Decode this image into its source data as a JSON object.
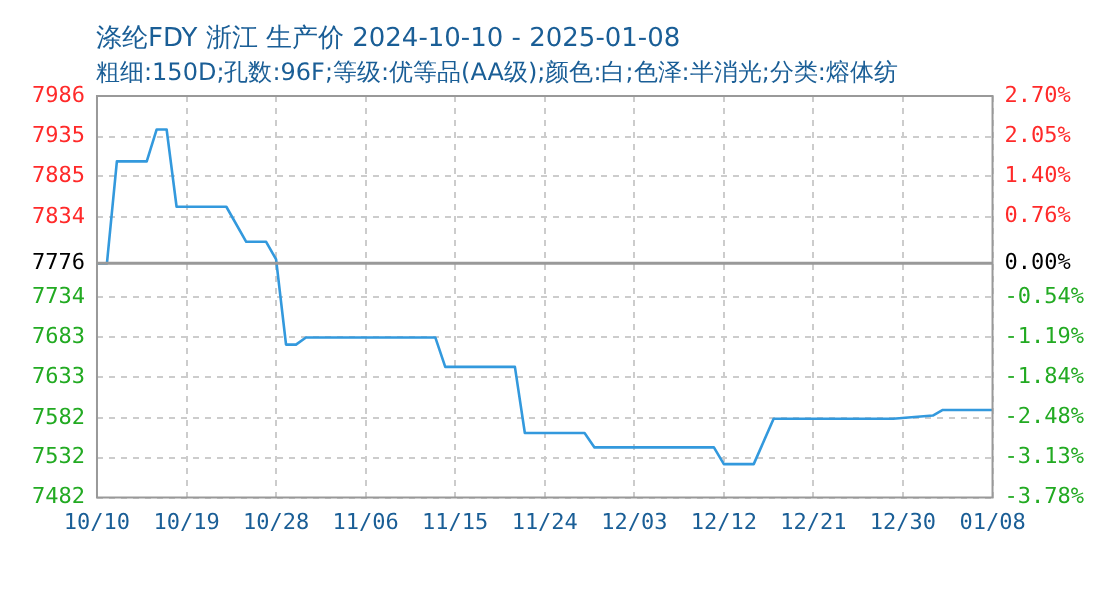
{
  "chart_data": {
    "type": "line",
    "title": "涤纶FDY 浙江 生产价 2024-10-10 - 2025-01-08",
    "subtitle": "粗细:150D;孔数:96F;等级:优等品(AA级);颜色:白;色泽:半消光;分类:熔体纺",
    "x": [
      "2024-10-10",
      "2024-10-11",
      "2024-10-12",
      "2024-10-15",
      "2024-10-16",
      "2024-10-17",
      "2024-10-18",
      "2024-10-23",
      "2024-10-25",
      "2024-10-27",
      "2024-10-28",
      "2024-10-29",
      "2024-10-30",
      "2024-10-31",
      "2024-11-13",
      "2024-11-14",
      "2024-11-21",
      "2024-11-22",
      "2024-11-28",
      "2024-11-29",
      "2024-12-11",
      "2024-12-12",
      "2024-12-15",
      "2024-12-17",
      "2024-12-29",
      "2025-01-02",
      "2025-01-03",
      "2025-01-08"
    ],
    "series": [
      {
        "color": "#3399dd",
        "values": [
          7776,
          7776,
          7904,
          7904,
          7944,
          7944,
          7847,
          7847,
          7803,
          7803,
          7781,
          7674,
          7674,
          7683,
          7683,
          7646,
          7646,
          7563,
          7563,
          7545,
          7545,
          7524,
          7524,
          7581,
          7581,
          7585,
          7592,
          7592
        ]
      }
    ],
    "xlim": [
      "2024-10-10",
      "2025-01-08"
    ],
    "xticks": [
      {
        "value": "2024-10-10",
        "label": "10/10"
      },
      {
        "value": "2024-10-19",
        "label": "10/19"
      },
      {
        "value": "2024-10-28",
        "label": "10/28"
      },
      {
        "value": "2024-11-06",
        "label": "11/06"
      },
      {
        "value": "2024-11-15",
        "label": "11/15"
      },
      {
        "value": "2024-11-24",
        "label": "11/24"
      },
      {
        "value": "2024-12-03",
        "label": "12/03"
      },
      {
        "value": "2024-12-12",
        "label": "12/12"
      },
      {
        "value": "2024-12-21",
        "label": "12/21"
      },
      {
        "value": "2024-12-30",
        "label": "12/30"
      },
      {
        "value": "2025-01-08",
        "label": "01/08"
      }
    ],
    "ylim": [
      7482,
      7986
    ],
    "yticks": [
      7482,
      7532,
      7582,
      7633,
      7683,
      7734,
      7776,
      7834,
      7885,
      7935,
      7986
    ],
    "y2lim": [
      -3.78,
      2.7
    ],
    "y2ticks": [
      {
        "value": -3.78,
        "label": "-3.78%"
      },
      {
        "value": -3.13,
        "label": "-3.13%"
      },
      {
        "value": -2.48,
        "label": "-2.48%"
      },
      {
        "value": -1.84,
        "label": "-1.84%"
      },
      {
        "value": -1.19,
        "label": "-1.19%"
      },
      {
        "value": -0.54,
        "label": "-0.54%"
      },
      {
        "value": 0,
        "label": "0.00%"
      },
      {
        "value": 0.76,
        "label": "0.76%"
      },
      {
        "value": 1.4,
        "label": "1.40%"
      },
      {
        "value": 2.05,
        "label": "2.05%"
      },
      {
        "value": 2.7,
        "label": "2.70%"
      }
    ],
    "ref_lines": [
      {
        "axis": "y",
        "value": 7776,
        "color": "#999999"
      }
    ],
    "grid": true,
    "marker": "none",
    "line_style": "solid"
  }
}
